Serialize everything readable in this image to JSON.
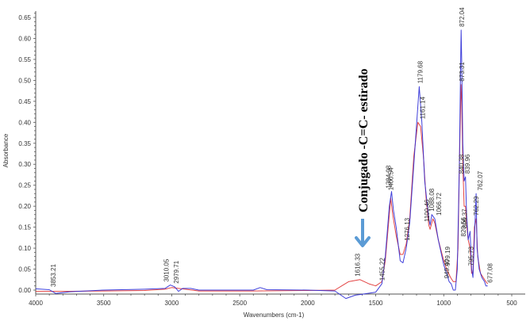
{
  "chart_data": {
    "type": "line",
    "title": "",
    "xlabel": "Wavenumbers (cm-1)",
    "ylabel": "Absorbance",
    "xlim": [
      4000,
      450
    ],
    "ylim": [
      -0.01,
      0.68
    ],
    "x_reversed": true,
    "grid": false,
    "legend": null,
    "x_ticks": [
      4000,
      3500,
      3000,
      2500,
      2000,
      1500,
      1000,
      500
    ],
    "y_ticks": [
      0.0,
      0.05,
      0.1,
      0.15,
      0.2,
      0.25,
      0.3,
      0.35,
      0.4,
      0.45,
      0.5,
      0.55,
      0.6,
      0.65
    ],
    "series": [
      {
        "name": "blue spectrum",
        "color": "#2b2bd6",
        "points": [
          [
            4000,
            0.003
          ],
          [
            3900,
            0.001
          ],
          [
            3853,
            -0.008
          ],
          [
            3750,
            -0.004
          ],
          [
            3500,
            0.0
          ],
          [
            3200,
            0.002
          ],
          [
            3050,
            0.004
          ],
          [
            3010,
            0.012
          ],
          [
            2979,
            0.008
          ],
          [
            2950,
            -0.003
          ],
          [
            2920,
            0.004
          ],
          [
            2860,
            0.004
          ],
          [
            2800,
            0.0
          ],
          [
            2400,
            0.0
          ],
          [
            2350,
            0.006
          ],
          [
            2300,
            0.001
          ],
          [
            2000,
            0.0
          ],
          [
            1800,
            -0.002
          ],
          [
            1720,
            -0.02
          ],
          [
            1650,
            -0.012
          ],
          [
            1600,
            -0.01
          ],
          [
            1500,
            -0.005
          ],
          [
            1455,
            0.015
          ],
          [
            1430,
            0.08
          ],
          [
            1400,
            0.2
          ],
          [
            1384,
            0.235
          ],
          [
            1370,
            0.19
          ],
          [
            1350,
            0.15
          ],
          [
            1320,
            0.07
          ],
          [
            1300,
            0.065
          ],
          [
            1276,
            0.1
          ],
          [
            1250,
            0.16
          ],
          [
            1220,
            0.3
          ],
          [
            1190,
            0.44
          ],
          [
            1180,
            0.485
          ],
          [
            1161,
            0.4
          ],
          [
            1140,
            0.26
          ],
          [
            1110,
            0.17
          ],
          [
            1100,
            0.155
          ],
          [
            1088,
            0.18
          ],
          [
            1066,
            0.17
          ],
          [
            1040,
            0.12
          ],
          [
            1000,
            0.06
          ],
          [
            979,
            0.04
          ],
          [
            960,
            0.02
          ],
          [
            945,
            0.015
          ],
          [
            930,
            0.0
          ],
          [
            915,
            0.0
          ],
          [
            900,
            0.05
          ],
          [
            885,
            0.3
          ],
          [
            875,
            0.56
          ],
          [
            872,
            0.62
          ],
          [
            868,
            0.55
          ],
          [
            860,
            0.35
          ],
          [
            850,
            0.26
          ],
          [
            840,
            0.27
          ],
          [
            832,
            0.18
          ],
          [
            820,
            0.12
          ],
          [
            806,
            0.14
          ],
          [
            795,
            0.05
          ],
          [
            785,
            0.03
          ],
          [
            775,
            0.12
          ],
          [
            762,
            0.23
          ],
          [
            755,
            0.1
          ],
          [
            740,
            0.05
          ],
          [
            720,
            0.03
          ],
          [
            700,
            0.02
          ],
          [
            690,
            0.01
          ],
          [
            677,
            0.01
          ]
        ]
      },
      {
        "name": "red spectrum",
        "color": "#e03030",
        "points": [
          [
            4000,
            -0.003
          ],
          [
            3800,
            -0.003
          ],
          [
            3500,
            -0.002
          ],
          [
            3200,
            -0.001
          ],
          [
            3050,
            0.002
          ],
          [
            3000,
            0.006
          ],
          [
            2950,
            0.004
          ],
          [
            2900,
            0.002
          ],
          [
            2800,
            -0.002
          ],
          [
            2400,
            -0.002
          ],
          [
            2000,
            -0.001
          ],
          [
            1800,
            0.0
          ],
          [
            1750,
            0.01
          ],
          [
            1700,
            0.02
          ],
          [
            1616,
            0.025
          ],
          [
            1550,
            0.015
          ],
          [
            1500,
            0.01
          ],
          [
            1455,
            0.02
          ],
          [
            1430,
            0.07
          ],
          [
            1400,
            0.18
          ],
          [
            1390,
            0.22
          ],
          [
            1375,
            0.18
          ],
          [
            1350,
            0.13
          ],
          [
            1320,
            0.085
          ],
          [
            1300,
            0.085
          ],
          [
            1276,
            0.11
          ],
          [
            1250,
            0.17
          ],
          [
            1220,
            0.32
          ],
          [
            1190,
            0.4
          ],
          [
            1170,
            0.39
          ],
          [
            1150,
            0.32
          ],
          [
            1130,
            0.22
          ],
          [
            1110,
            0.155
          ],
          [
            1100,
            0.145
          ],
          [
            1080,
            0.17
          ],
          [
            1066,
            0.16
          ],
          [
            1040,
            0.12
          ],
          [
            1000,
            0.07
          ],
          [
            979,
            0.05
          ],
          [
            950,
            0.03
          ],
          [
            930,
            0.02
          ],
          [
            910,
            0.02
          ],
          [
            895,
            0.1
          ],
          [
            885,
            0.3
          ],
          [
            873,
            0.49
          ],
          [
            868,
            0.45
          ],
          [
            860,
            0.3
          ],
          [
            850,
            0.2
          ],
          [
            840,
            0.2
          ],
          [
            830,
            0.15
          ],
          [
            820,
            0.12
          ],
          [
            806,
            0.1
          ],
          [
            795,
            0.04
          ],
          [
            785,
            0.04
          ],
          [
            775,
            0.15
          ],
          [
            762,
            0.17
          ],
          [
            750,
            0.08
          ],
          [
            730,
            0.04
          ],
          [
            710,
            0.03
          ],
          [
            690,
            0.02
          ],
          [
            677,
            0.015
          ]
        ]
      }
    ],
    "peak_labels": [
      {
        "label": "3853.21",
        "x": 3853,
        "y": 0.0
      },
      {
        "label": "3010.05",
        "x": 3010,
        "y": 0.012
      },
      {
        "label": "2979.71",
        "x": 2979,
        "y": 0.008
      },
      {
        "label": "1616.33",
        "x": 1616,
        "y": 0.025
      },
      {
        "label": "1455.22",
        "x": 1455,
        "y": 0.015
      },
      {
        "label": "1384.98",
        "x": 1384,
        "y": 0.235
      },
      {
        "label": "1400.54",
        "x": 1400,
        "y": 0.23
      },
      {
        "label": "1276.13",
        "x": 1276,
        "y": 0.11
      },
      {
        "label": "1179.68",
        "x": 1180,
        "y": 0.485
      },
      {
        "label": "1161.14",
        "x": 1161,
        "y": 0.4
      },
      {
        "label": "1100.46",
        "x": 1100,
        "y": 0.155
      },
      {
        "label": "1088.08",
        "x": 1088,
        "y": 0.18
      },
      {
        "label": "1066.72",
        "x": 1066,
        "y": 0.17
      },
      {
        "label": "979.19",
        "x": 979,
        "y": 0.05
      },
      {
        "label": "949.40",
        "x": 949,
        "y": 0.02
      },
      {
        "label": "872.04",
        "x": 872,
        "y": 0.62
      },
      {
        "label": "873.31",
        "x": 873,
        "y": 0.49
      },
      {
        "label": "840.38",
        "x": 840,
        "y": 0.27
      },
      {
        "label": "839.96",
        "x": 839,
        "y": 0.27
      },
      {
        "label": "820.56",
        "x": 820,
        "y": 0.12
      },
      {
        "label": "806.37",
        "x": 806,
        "y": 0.14
      },
      {
        "label": "795.73",
        "x": 795,
        "y": 0.05
      },
      {
        "label": "762.07",
        "x": 762,
        "y": 0.23
      },
      {
        "label": "762.29",
        "x": 762,
        "y": 0.17
      },
      {
        "label": "677.08",
        "x": 677,
        "y": 0.01
      }
    ],
    "annotations": [
      {
        "text": "Conjugado -C=C- estirado",
        "orientation": "vertical",
        "arrow": "down",
        "arrow_color": "#5b9bd5",
        "x": 1616
      }
    ]
  }
}
